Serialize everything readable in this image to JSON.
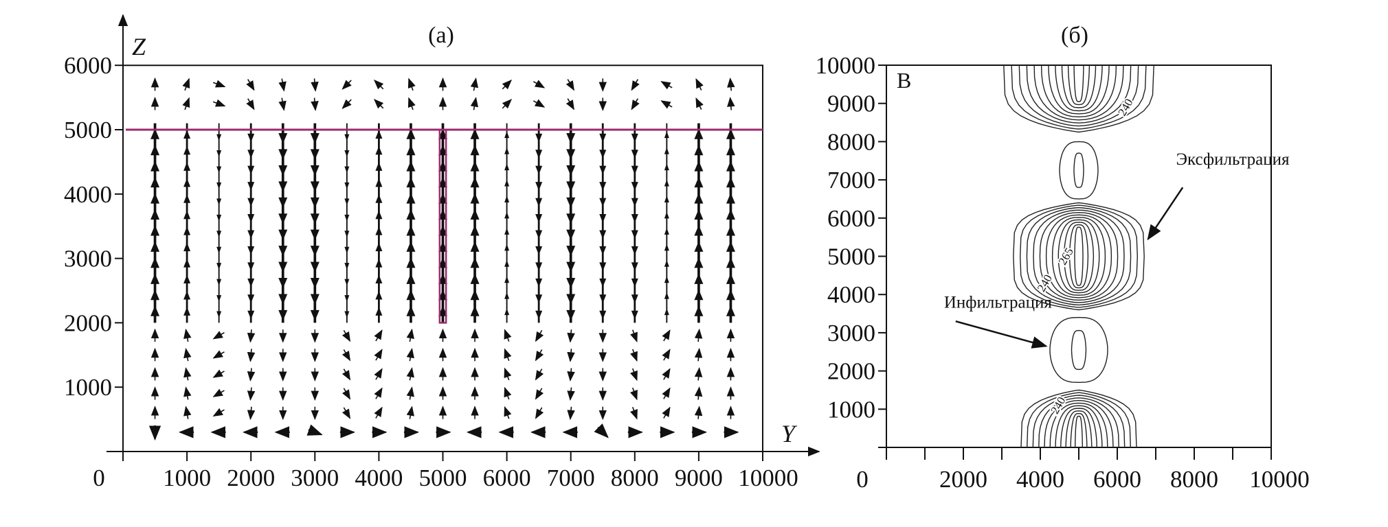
{
  "chart_data": [
    {
      "type": "vector-field",
      "title": "(a)",
      "xlabel": "Y",
      "ylabel": "Z",
      "xlim": [
        0,
        10000
      ],
      "ylim": [
        0,
        6000
      ],
      "x_ticks": [
        0,
        1000,
        2000,
        3000,
        4000,
        5000,
        6000,
        7000,
        8000,
        9000,
        10000
      ],
      "x_tick_labels": [
        "0",
        "1000",
        "2000",
        "3000",
        "4000",
        "5000",
        "6000",
        "7000",
        "8000",
        "9000",
        "10000"
      ],
      "y_ticks": [
        1000,
        2000,
        3000,
        4000,
        5000,
        6000
      ],
      "y_tick_labels": [
        "1000",
        "2000",
        "3000",
        "4000",
        "5000",
        "6000"
      ],
      "interface_line_z": 5000,
      "highlight_rect": {
        "y": [
          4950,
          5050
        ],
        "z": [
          2000,
          5000
        ]
      },
      "highlight_color": "#9c2a6e",
      "column_y": [
        500,
        1000,
        1500,
        2000,
        2500,
        3000,
        3500,
        4000,
        4500,
        5000,
        5500,
        6000,
        6500,
        7000,
        7500,
        8000,
        8500,
        9000,
        9500
      ],
      "column_direction": [
        "up",
        "up",
        "down",
        "down",
        "down",
        "down",
        "down",
        "up",
        "up",
        "up",
        "up",
        "up",
        "down",
        "down",
        "down",
        "down",
        "up",
        "up",
        "up"
      ],
      "column_strength": [
        3,
        2,
        1,
        2,
        3,
        3,
        1,
        2,
        3,
        3,
        3,
        1,
        2,
        3,
        2,
        2,
        1,
        3,
        3
      ],
      "main_flow_z": [
        2000,
        5100
      ],
      "top_rows_z": [
        5400,
        5700
      ],
      "top_angles_deg": [
        90,
        70,
        -20,
        -60,
        -80,
        -85,
        -135,
        135,
        110,
        90,
        80,
        45,
        -30,
        -60,
        -90,
        -120,
        150,
        115,
        95
      ],
      "lower_rows_z": [
        600,
        900,
        1200,
        1500,
        1800
      ],
      "lower_angles_deg": [
        90,
        100,
        -150,
        -95,
        -90,
        -90,
        -60,
        60,
        80,
        90,
        90,
        110,
        -120,
        -95,
        -90,
        -70,
        60,
        85,
        90
      ],
      "bottom_row_z": 300,
      "bottom_angles_deg": [
        -90,
        180,
        180,
        180,
        180,
        -20,
        0,
        0,
        0,
        0,
        180,
        180,
        180,
        180,
        -45,
        0,
        0,
        0,
        0
      ]
    },
    {
      "type": "contour",
      "title": "(б)",
      "panel_label": "В",
      "xlim": [
        0,
        10000
      ],
      "ylim": [
        0,
        10000
      ],
      "x_ticks": [
        0,
        1000,
        2000,
        3000,
        4000,
        5000,
        6000,
        7000,
        8000,
        9000,
        10000
      ],
      "x_tick_labels": [
        "0",
        "2000",
        "4000",
        "6000",
        "8000",
        "10000"
      ],
      "x_tick_label_values": [
        0,
        2000,
        4000,
        6000,
        8000,
        10000
      ],
      "y_ticks": [
        1000,
        2000,
        3000,
        4000,
        5000,
        6000,
        7000,
        8000,
        9000,
        10000
      ],
      "y_tick_labels": [
        "1000",
        "2000",
        "3000",
        "4000",
        "5000",
        "6000",
        "7000",
        "8000",
        "9000",
        "10000"
      ],
      "lobes": [
        {
          "center": [
            5000,
            10000
          ],
          "half_width": 1950,
          "half_height": 1750,
          "levels": 11
        },
        {
          "center": [
            5000,
            7250
          ],
          "half_width": 500,
          "half_height": 750,
          "levels": 2
        },
        {
          "center": [
            5000,
            5000
          ],
          "half_width": 1700,
          "half_height": 1400,
          "levels": 11
        },
        {
          "center": [
            5000,
            2550
          ],
          "half_width": 750,
          "half_height": 850,
          "levels": 2
        },
        {
          "center": [
            5000,
            0
          ],
          "half_width": 1500,
          "half_height": 1500,
          "levels": 11
        }
      ],
      "contour_labels": [
        {
          "text": "240",
          "at": [
            6300,
            8850
          ]
        },
        {
          "text": "265",
          "at": [
            4750,
            4950
          ]
        },
        {
          "text": "240",
          "at": [
            4200,
            4250
          ]
        },
        {
          "text": "240",
          "at": [
            4550,
            1050
          ]
        }
      ],
      "annotations": [
        {
          "text": "Эксфильтрация",
          "text_at": [
            9000,
            7400
          ],
          "arrow_from": [
            7700,
            6800
          ],
          "arrow_to": [
            6800,
            5450
          ]
        },
        {
          "text": "Инфильтрация",
          "text_at": [
            2900,
            3650
          ],
          "arrow_from": [
            1800,
            3300
          ],
          "arrow_to": [
            4150,
            2650
          ]
        }
      ]
    }
  ]
}
